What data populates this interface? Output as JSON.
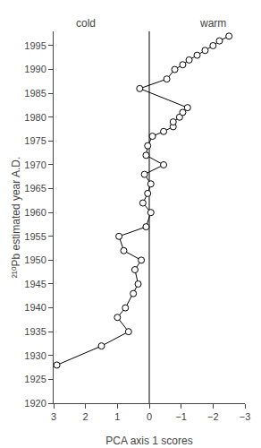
{
  "chart_data": {
    "type": "line",
    "x": [
      2.9,
      1.5,
      0.65,
      1.0,
      0.75,
      0.5,
      0.35,
      0.45,
      0.25,
      0.8,
      0.95,
      0.1,
      -0.05,
      0.2,
      0.05,
      -0.05,
      0.15,
      -0.45,
      0.1,
      0.05,
      -0.1,
      -0.45,
      -0.75,
      -0.75,
      -0.95,
      -1.05,
      -1.2,
      0.3,
      -0.55,
      -0.8,
      -1.05,
      -1.25,
      -1.5,
      -1.75,
      -2.0,
      -2.2,
      -2.5
    ],
    "values": [
      1928,
      1932,
      1935,
      1938,
      1940,
      1943,
      1945,
      1948,
      1950,
      1952,
      1955,
      1957,
      1960,
      1962,
      1964,
      1966,
      1968,
      1970,
      1972,
      1974,
      1976,
      1977,
      1978,
      1979,
      1980,
      1981,
      1982,
      1986,
      1988,
      1990,
      1991,
      1992,
      1993,
      1994,
      1995,
      1996,
      1997
    ],
    "xlabel": "PCA axis 1 scores",
    "ylabel": "²¹⁰Pb estimated year A.D.",
    "xlim": [
      3,
      -3
    ],
    "xticks": [
      3,
      2,
      1,
      0,
      -1,
      -2,
      -3
    ],
    "ylim": [
      1920,
      1998
    ],
    "yticks": [
      1920,
      1925,
      1930,
      1935,
      1940,
      1945,
      1950,
      1955,
      1960,
      1965,
      1970,
      1975,
      1980,
      1985,
      1990,
      1995
    ],
    "vlines": [
      0
    ],
    "annotations": [
      {
        "text": "cold",
        "x": 2.0,
        "y": 1998
      },
      {
        "text": "warm",
        "x": -2.0,
        "y": 1998
      }
    ],
    "color": "black",
    "marker": "open circle",
    "grid": false
  }
}
